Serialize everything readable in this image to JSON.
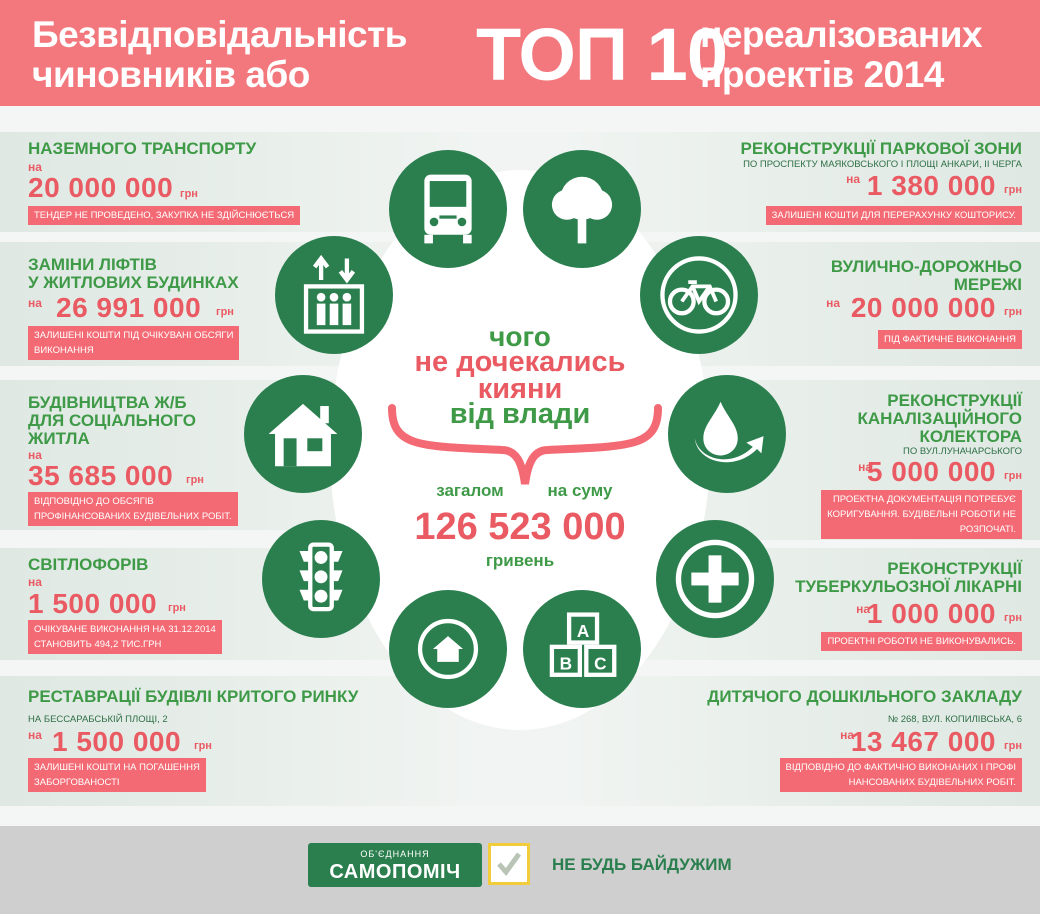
{
  "header": {
    "left_line1": "Безвідповідальність",
    "left_line2": "чиновників або",
    "top10": "ТОП 10",
    "right_line1": "нереалізованих",
    "right_line2": "проектів 2014"
  },
  "left_items": [
    {
      "title": "НАЗЕМНОГО ТРАНСПОРТУ",
      "na": "на",
      "amount": "20 000 000",
      "unit": "грн",
      "note": "ТЕНДЕР НЕ ПРОВЕДЕНО, ЗАКУПКА НЕ ЗДІЙСНЮЄТЬСЯ"
    },
    {
      "title": "ЗАМІНИ ЛІФТІВ\nУ ЖИТЛОВИХ БУДИНКАХ",
      "na": "на",
      "amount": "26 991 000",
      "unit": "грн",
      "note": "ЗАЛИШЕНІ КОШТИ ПІД ОЧІКУВАНІ ОБСЯГИ\nВИКОНАННЯ"
    },
    {
      "title": "БУДІВНИЦТВА Ж/Б\nДЛЯ СОЦІАЛЬНОГО\nЖИТЛА",
      "na": "на",
      "amount": "35 685 000",
      "unit": "грн",
      "note": "ВІДПОВІДНО ДО ОБСЯГІВ\nПРОФІНАНСОВАНИХ БУДІВЕЛЬНИХ РОБІТ."
    },
    {
      "title": "СВІТЛОФОРІВ",
      "na": "на",
      "amount": "1 500 000",
      "unit": "грн",
      "note": "ОЧІКУВАНЕ ВИКОНАННЯ НА 31.12.2014\nСТАНОВИТЬ 494,2 ТИС.ГРН"
    },
    {
      "title": "РЕСТАВРАЦІЇ БУДІВЛІ КРИТОГО РИНКУ",
      "sub": "НА БЕССАРАБСЬКІЙ ПЛОЩІ, 2",
      "na": "на",
      "amount": "1 500 000",
      "unit": "грн",
      "note": "ЗАЛИШЕНІ КОШТИ НА ПОГАШЕННЯ\nЗАБОРГОВАНОСТІ"
    }
  ],
  "right_items": [
    {
      "title": "РЕКОНСТРУКЦІЇ ПАРКОВОЇ ЗОНИ",
      "sub": "ПО ПРОСПЕКТУ МАЯКОВСЬКОГО І ПЛОЩІ АНКАРИ, ІІ ЧЕРГА",
      "na": "на",
      "amount": "1 380 000",
      "unit": "грн",
      "note": "ЗАЛИШЕНІ КОШТИ ДЛЯ ПЕРЕРАХУНКУ КОШТОРИСУ."
    },
    {
      "title": "ВУЛИЧНО-ДОРОЖНЬО\nМЕРЕЖІ",
      "na": "на",
      "amount": "20 000 000",
      "unit": "грн",
      "note": "ПІД ФАКТИЧНЕ ВИКОНАННЯ"
    },
    {
      "title": "РЕКОНСТРУКЦІЇ\nКАНАЛІЗАЦІЙНОГО\nКОЛЕКТОРА",
      "sub": "ПО ВУЛ.ЛУНАЧАРСЬКОГО",
      "na": "на",
      "amount": "5 000 000",
      "unit": "грн",
      "note": "ПРОЕКТНА ДОКУМЕНТАЦІЯ ПОТРЕБУЄ\nКОРИГУВАННЯ. БУДІВЕЛЬНІ РОБОТИ НЕ\nРОЗПОЧАТІ."
    },
    {
      "title": "РЕКОНСТРУКЦІЇ\nТУБЕРКУЛЬОЗНОЇ ЛІКАРНІ",
      "na": "на",
      "amount": "1 000 000",
      "unit": "грн",
      "note": "ПРОЕКТНІ РОБОТИ НЕ ВИКОНУВАЛИСЬ."
    },
    {
      "title": "ДИТЯЧОГО ДОШКІЛЬНОГО ЗАКЛАДУ",
      "sub": "№ 268, ВУЛ. КОПИЛІВСЬКА, 6",
      "na": "на",
      "amount": "13 467 000",
      "unit": "грн",
      "note": "ВІДПОВІДНО ДО ФАКТИЧНО ВИКОНАНИХ І ПРОФІ\nНАНСОВАНИХ БУДІВЕЛЬНИХ РОБІТ."
    }
  ],
  "center": {
    "line1": "чого",
    "line2": "не дочекались",
    "line3": "кияни",
    "line4": "від влади",
    "total_left": "загалом",
    "total_right": "на суму",
    "total_amount": "126 523 000",
    "total_unit": "гривень"
  },
  "footer": {
    "logo_small": "ОБ'ЄДНАННЯ",
    "logo_big": "САМОПОМІЧ",
    "slogan": "НЕ БУДЬ БАЙДУЖИМ"
  },
  "icons": [
    "bus-icon",
    "tree-icon",
    "bicycle-icon",
    "water-drop-icon",
    "medical-cross-icon",
    "abc-blocks-icon",
    "house-small-icon",
    "traffic-light-icon",
    "house-icon",
    "elevator-icon"
  ],
  "colors": {
    "header_pink": "#f3787e",
    "green": "#2b7f4f",
    "title_green": "#3f9a48",
    "amount_pink": "#ea5a63",
    "footer_gray": "#cfcfcf"
  }
}
